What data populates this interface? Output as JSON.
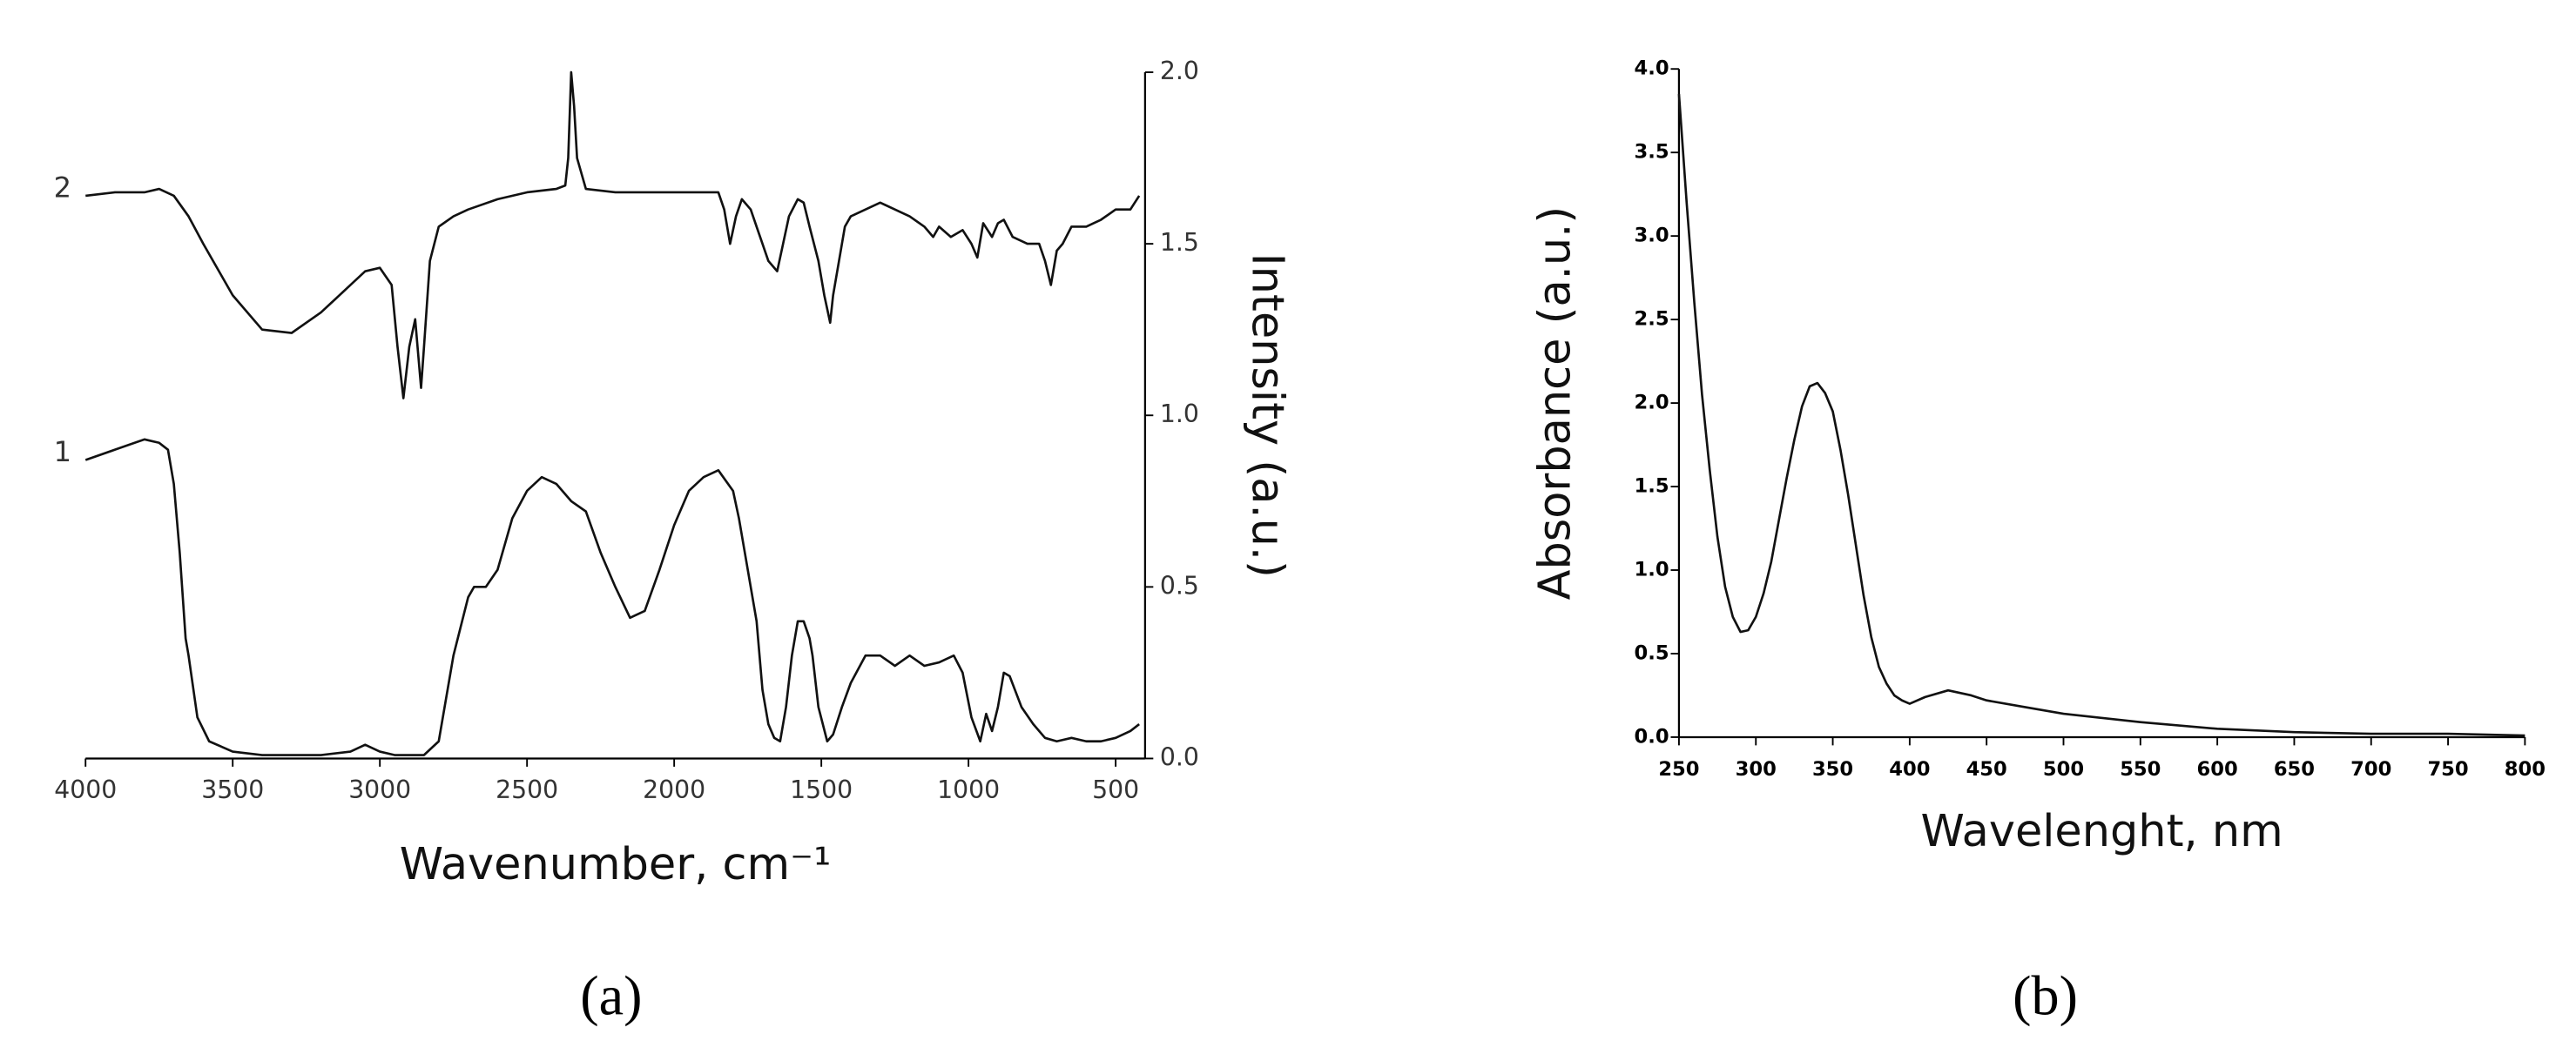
{
  "chart_data": [
    {
      "type": "line",
      "caption": "(a)",
      "xlabel": "Wavenumber, cm⁻¹",
      "ylabel": "Intensity (a.u.)",
      "y_axis_position": "right",
      "xlim": [
        4000,
        400
      ],
      "ylim": [
        0,
        2.0
      ],
      "xticks": [
        4000,
        3500,
        3000,
        2500,
        2000,
        1500,
        1000,
        500
      ],
      "yticks": [
        {
          "value": 0,
          "label": "0.0"
        },
        {
          "value": 0.5,
          "label": "0.5"
        },
        {
          "value": 1.0,
          "label": "1.0"
        },
        {
          "value": 1.5,
          "label": "1.5"
        },
        {
          "value": 2.0,
          "label": "2.0"
        }
      ],
      "series": [
        {
          "name": "1",
          "color": "#111111",
          "x": [
            4000,
            3900,
            3800,
            3750,
            3720,
            3700,
            3680,
            3660,
            3650,
            3620,
            3580,
            3500,
            3400,
            3200,
            3100,
            3050,
            3000,
            2950,
            2850,
            2800,
            2750,
            2700,
            2680,
            2640,
            2600,
            2550,
            2500,
            2450,
            2400,
            2350,
            2300,
            2250,
            2200,
            2150,
            2100,
            2050,
            2000,
            1950,
            1900,
            1850,
            1800,
            1780,
            1750,
            1720,
            1700,
            1680,
            1660,
            1640,
            1620,
            1600,
            1580,
            1560,
            1540,
            1530,
            1510,
            1480,
            1460,
            1430,
            1400,
            1350,
            1300,
            1250,
            1200,
            1150,
            1100,
            1050,
            1020,
            990,
            960,
            940,
            920,
            900,
            880,
            860,
            820,
            780,
            740,
            700,
            650,
            600,
            550,
            500,
            450,
            420
          ],
          "values": [
            0.87,
            0.9,
            0.93,
            0.92,
            0.9,
            0.8,
            0.6,
            0.35,
            0.3,
            0.12,
            0.05,
            0.02,
            0.01,
            0.01,
            0.02,
            0.04,
            0.02,
            0.01,
            0.01,
            0.05,
            0.3,
            0.47,
            0.5,
            0.5,
            0.55,
            0.7,
            0.78,
            0.82,
            0.8,
            0.75,
            0.72,
            0.6,
            0.5,
            0.41,
            0.43,
            0.55,
            0.68,
            0.78,
            0.82,
            0.84,
            0.78,
            0.7,
            0.55,
            0.4,
            0.2,
            0.1,
            0.06,
            0.05,
            0.15,
            0.3,
            0.4,
            0.4,
            0.35,
            0.3,
            0.15,
            0.05,
            0.07,
            0.15,
            0.22,
            0.3,
            0.3,
            0.27,
            0.3,
            0.27,
            0.28,
            0.3,
            0.25,
            0.12,
            0.05,
            0.13,
            0.08,
            0.15,
            0.25,
            0.24,
            0.15,
            0.1,
            0.06,
            0.05,
            0.06,
            0.05,
            0.05,
            0.06,
            0.08,
            0.1
          ]
        },
        {
          "name": "2",
          "color": "#111111",
          "x": [
            4000,
            3900,
            3800,
            3750,
            3700,
            3650,
            3600,
            3500,
            3400,
            3300,
            3200,
            3100,
            3050,
            3000,
            2960,
            2940,
            2920,
            2900,
            2880,
            2860,
            2850,
            2830,
            2800,
            2750,
            2700,
            2600,
            2500,
            2400,
            2370,
            2360,
            2350,
            2340,
            2330,
            2300,
            2200,
            2100,
            2000,
            1900,
            1850,
            1830,
            1810,
            1790,
            1770,
            1740,
            1720,
            1700,
            1680,
            1650,
            1630,
            1610,
            1580,
            1560,
            1540,
            1510,
            1490,
            1470,
            1460,
            1440,
            1420,
            1400,
            1350,
            1300,
            1250,
            1200,
            1150,
            1120,
            1100,
            1060,
            1020,
            990,
            970,
            950,
            920,
            900,
            880,
            850,
            800,
            760,
            740,
            720,
            700,
            680,
            650,
            600,
            550,
            500,
            450,
            420
          ],
          "values": [
            1.64,
            1.65,
            1.65,
            1.66,
            1.64,
            1.58,
            1.5,
            1.35,
            1.25,
            1.24,
            1.3,
            1.38,
            1.42,
            1.43,
            1.38,
            1.2,
            1.05,
            1.2,
            1.28,
            1.08,
            1.2,
            1.45,
            1.55,
            1.58,
            1.6,
            1.63,
            1.65,
            1.66,
            1.67,
            1.75,
            2.0,
            1.9,
            1.75,
            1.66,
            1.65,
            1.65,
            1.65,
            1.65,
            1.65,
            1.6,
            1.5,
            1.58,
            1.63,
            1.6,
            1.55,
            1.5,
            1.45,
            1.42,
            1.5,
            1.58,
            1.63,
            1.62,
            1.55,
            1.45,
            1.35,
            1.27,
            1.35,
            1.45,
            1.55,
            1.58,
            1.6,
            1.62,
            1.6,
            1.58,
            1.55,
            1.52,
            1.55,
            1.52,
            1.54,
            1.5,
            1.46,
            1.56,
            1.52,
            1.56,
            1.57,
            1.52,
            1.5,
            1.5,
            1.45,
            1.38,
            1.48,
            1.5,
            1.55,
            1.55,
            1.57,
            1.6,
            1.6,
            1.64
          ]
        }
      ]
    },
    {
      "type": "line",
      "caption": "(b)",
      "xlabel": "Wavelenght, nm",
      "ylabel": "Absorbance (a.u.)",
      "y_axis_position": "left",
      "xlim": [
        250,
        800
      ],
      "ylim": [
        0,
        4.0
      ],
      "xticks": [
        250,
        300,
        350,
        400,
        450,
        500,
        550,
        600,
        650,
        700,
        750,
        800
      ],
      "yticks": [
        {
          "value": 0,
          "label": "0.0"
        },
        {
          "value": 0.5,
          "label": "0.5"
        },
        {
          "value": 1.0,
          "label": "1.0"
        },
        {
          "value": 1.5,
          "label": "1.5"
        },
        {
          "value": 2.0,
          "label": "2.0"
        },
        {
          "value": 2.5,
          "label": "2.5"
        },
        {
          "value": 3.0,
          "label": "3.0"
        },
        {
          "value": 3.5,
          "label": "3.5"
        },
        {
          "value": 4.0,
          "label": "4.0"
        }
      ],
      "series": [
        {
          "name": "Absorbance",
          "color": "#111111",
          "x": [
            250,
            255,
            260,
            265,
            270,
            275,
            280,
            285,
            290,
            295,
            300,
            305,
            310,
            315,
            320,
            325,
            330,
            335,
            340,
            345,
            350,
            355,
            360,
            365,
            370,
            375,
            380,
            385,
            390,
            395,
            400,
            410,
            425,
            440,
            450,
            475,
            500,
            550,
            600,
            650,
            700,
            750,
            800
          ],
          "values": [
            3.85,
            3.2,
            2.6,
            2.05,
            1.6,
            1.2,
            0.9,
            0.72,
            0.63,
            0.64,
            0.72,
            0.86,
            1.05,
            1.3,
            1.55,
            1.78,
            1.98,
            2.1,
            2.12,
            2.06,
            1.95,
            1.72,
            1.45,
            1.15,
            0.85,
            0.6,
            0.42,
            0.32,
            0.25,
            0.22,
            0.2,
            0.24,
            0.28,
            0.25,
            0.22,
            0.18,
            0.14,
            0.09,
            0.05,
            0.03,
            0.02,
            0.02,
            0.01
          ]
        }
      ]
    }
  ]
}
